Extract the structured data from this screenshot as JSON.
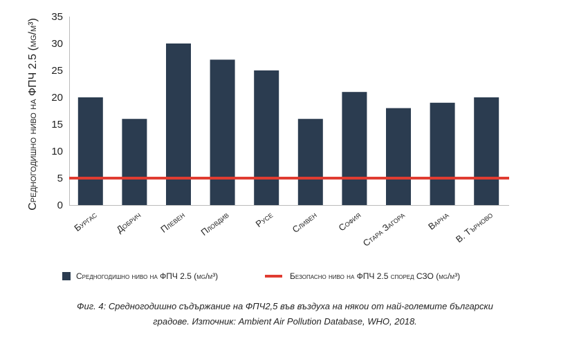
{
  "chart_data": {
    "type": "bar",
    "categories": [
      "Бургас",
      "Добрич",
      "Плевен",
      "Пловдив",
      "Русе",
      "Сливен",
      "София",
      "Стара Загора",
      "Варна",
      "В. Търново"
    ],
    "series": [
      {
        "name": "Средногодишно ниво на ФПЧ 2.5 (µg/m³)",
        "values": [
          20,
          16,
          30,
          27,
          25,
          16,
          21,
          18,
          19,
          20
        ],
        "color": "#2b3c50"
      }
    ],
    "reference_line": {
      "name": "Безопасно ниво на ФПЧ 2.5 според СЗО (µg/m³)",
      "value": 5,
      "color": "#e03c31"
    },
    "title": "",
    "xlabel": "",
    "ylabel": "Средногодишно ниво на ФПЧ 2.5 (µg/m³)",
    "ylim": [
      0,
      35
    ],
    "yticks": [
      0,
      5,
      10,
      15,
      20,
      25,
      30,
      35
    ],
    "grid": false,
    "legend_position": "bottom"
  },
  "caption": {
    "line1": "Фиг. 4: Средногодишно съдържание на ФПЧ2,5 във въздуха на някои от най-големите български",
    "line2": "градове. Източник: Ambient Air Pollution Database, WHO, 2018."
  }
}
